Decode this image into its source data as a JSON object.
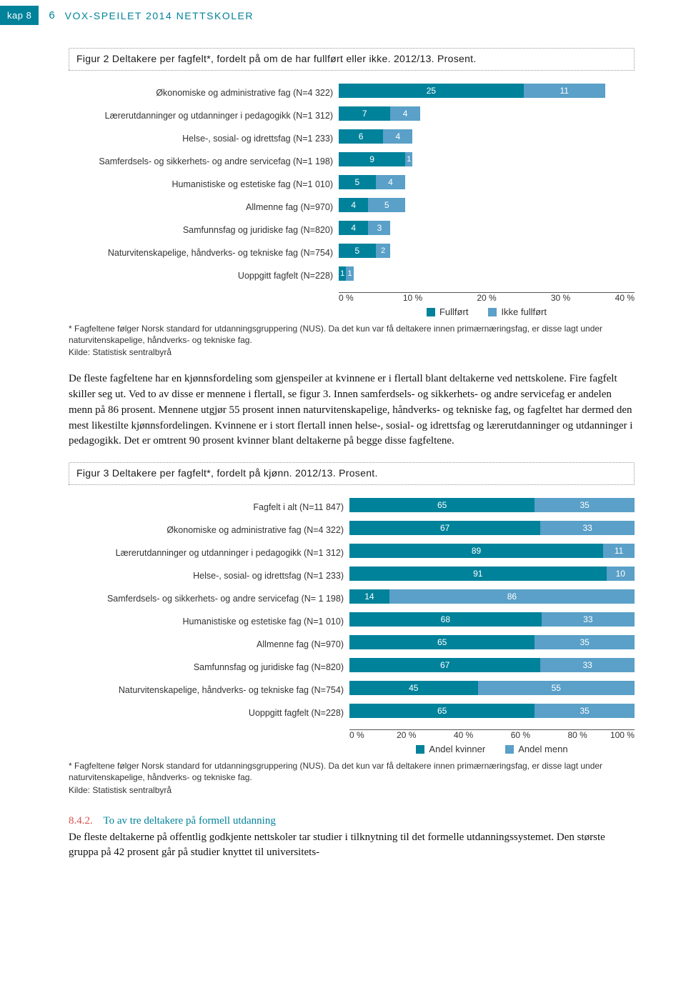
{
  "header": {
    "kap": "kap 8",
    "page": "6",
    "title": "VOX-SPEILET 2014  NETTSKOLER"
  },
  "fig2": {
    "title": "Figur 2 Deltakere per fagfelt*, fordelt på om de har fullført eller ikke. 2012/13. Prosent.",
    "xmax": 40,
    "xticks": [
      0,
      10,
      20,
      30,
      40
    ],
    "colors": {
      "a": "#00829b",
      "b": "#5aa0c8"
    },
    "legend": {
      "a": "Fullført",
      "b": "Ikke fullført"
    },
    "rows": [
      {
        "label": "Økonomiske og administrative fag (N=4 322)",
        "a": 25,
        "b": 11
      },
      {
        "label": "Lærerutdanninger og utdanninger i pedagogikk (N=1 312)",
        "a": 7,
        "b": 4
      },
      {
        "label": "Helse-, sosial- og idrettsfag (N=1 233)",
        "a": 6,
        "b": 4
      },
      {
        "label": "Samferdsels- og sikkerhets- og andre servicefag (N=1 198)",
        "a": 9,
        "b": 1
      },
      {
        "label": "Humanistiske og estetiske fag (N=1 010)",
        "a": 5,
        "b": 4
      },
      {
        "label": "Allmenne fag (N=970)",
        "a": 4,
        "b": 5
      },
      {
        "label": "Samfunnsfag og juridiske fag (N=820)",
        "a": 4,
        "b": 3
      },
      {
        "label": "Naturvitenskapelige, håndverks- og tekniske fag (N=754)",
        "a": 5,
        "b": 2
      },
      {
        "label": "Uoppgitt fagfelt (N=228)",
        "a": 1,
        "b": 1
      }
    ],
    "footnote": "* Fagfeltene følger Norsk standard for utdanningsgruppering (NUS). Da det kun var få deltakere innen primærnæringsfag, er disse lagt under naturvitenskapelige, håndverks- og tekniske fag.",
    "kilde": "Kilde: Statistisk sentralbyrå"
  },
  "midtext": "De fleste fagfeltene har en kjønnsfordeling som gjenspeiler at kvinnene er i flertall blant deltakerne ved nettskolene. Fire fagfelt skiller seg ut. Ved to av disse er mennene i flertall, se figur 3. Innen samferdsels- og sikkerhets- og andre servicefag er andelen menn på 86 prosent. Mennene utgjør 55 prosent innen naturvitenskapelige, håndverks- og tekniske fag, og fagfeltet har dermed den mest likestilte kjønnsfordelingen. Kvinnene er i stort flertall innen helse-, sosial- og idrettsfag og lærerutdanninger og utdanninger i pedagogikk. Det er omtrent 90 prosent kvinner blant deltakerne på begge disse fagfeltene.",
  "fig3": {
    "title": "Figur 3 Deltakere per fagfelt*, fordelt på kjønn. 2012/13. Prosent.",
    "xmax": 100,
    "xticks": [
      0,
      20,
      40,
      60,
      80,
      100
    ],
    "colors": {
      "a": "#00829b",
      "b": "#5aa0c8"
    },
    "legend": {
      "a": "Andel kvinner",
      "b": "Andel menn"
    },
    "rows": [
      {
        "label": "Fagfelt i alt (N=11 847)",
        "a": 65,
        "b": 35
      },
      {
        "label": "Økonomiske og administrative fag (N=4 322)",
        "a": 67,
        "b": 33
      },
      {
        "label": "Lærerutdanninger og utdanninger i pedagogikk (N=1 312)",
        "a": 89,
        "b": 11
      },
      {
        "label": "Helse-, sosial- og idrettsfag (N=1 233)",
        "a": 91,
        "b": 10
      },
      {
        "label": "Samferdsels- og sikkerhets- og andre servicefag (N= 1 198)",
        "a": 14,
        "b": 86
      },
      {
        "label": "Humanistiske og estetiske fag (N=1 010)",
        "a": 68,
        "b": 33
      },
      {
        "label": "Allmenne fag (N=970)",
        "a": 65,
        "b": 35
      },
      {
        "label": "Samfunnsfag og juridiske fag (N=820)",
        "a": 67,
        "b": 33
      },
      {
        "label": "Naturvitenskapelige, håndverks- og tekniske fag (N=754)",
        "a": 45,
        "b": 55
      },
      {
        "label": "Uoppgitt fagfelt (N=228)",
        "a": 65,
        "b": 35
      }
    ],
    "footnote": "* Fagfeltene følger Norsk standard for utdanningsgruppering (NUS). Da det kun var få deltakere innen primærnæringsfag, er disse lagt under naturvitenskapelige, håndverks- og tekniske fag.",
    "kilde": "Kilde: Statistisk sentralbyrå"
  },
  "section": {
    "num": "8.4.2.",
    "title": "To av tre deltakere på formell utdanning",
    "body": "De fleste deltakerne på offentlig godkjente nettskoler tar studier i tilknytning til det formelle utdanningssystemet. Den største gruppa på 42 prosent går på studier knyttet til universitets-"
  }
}
